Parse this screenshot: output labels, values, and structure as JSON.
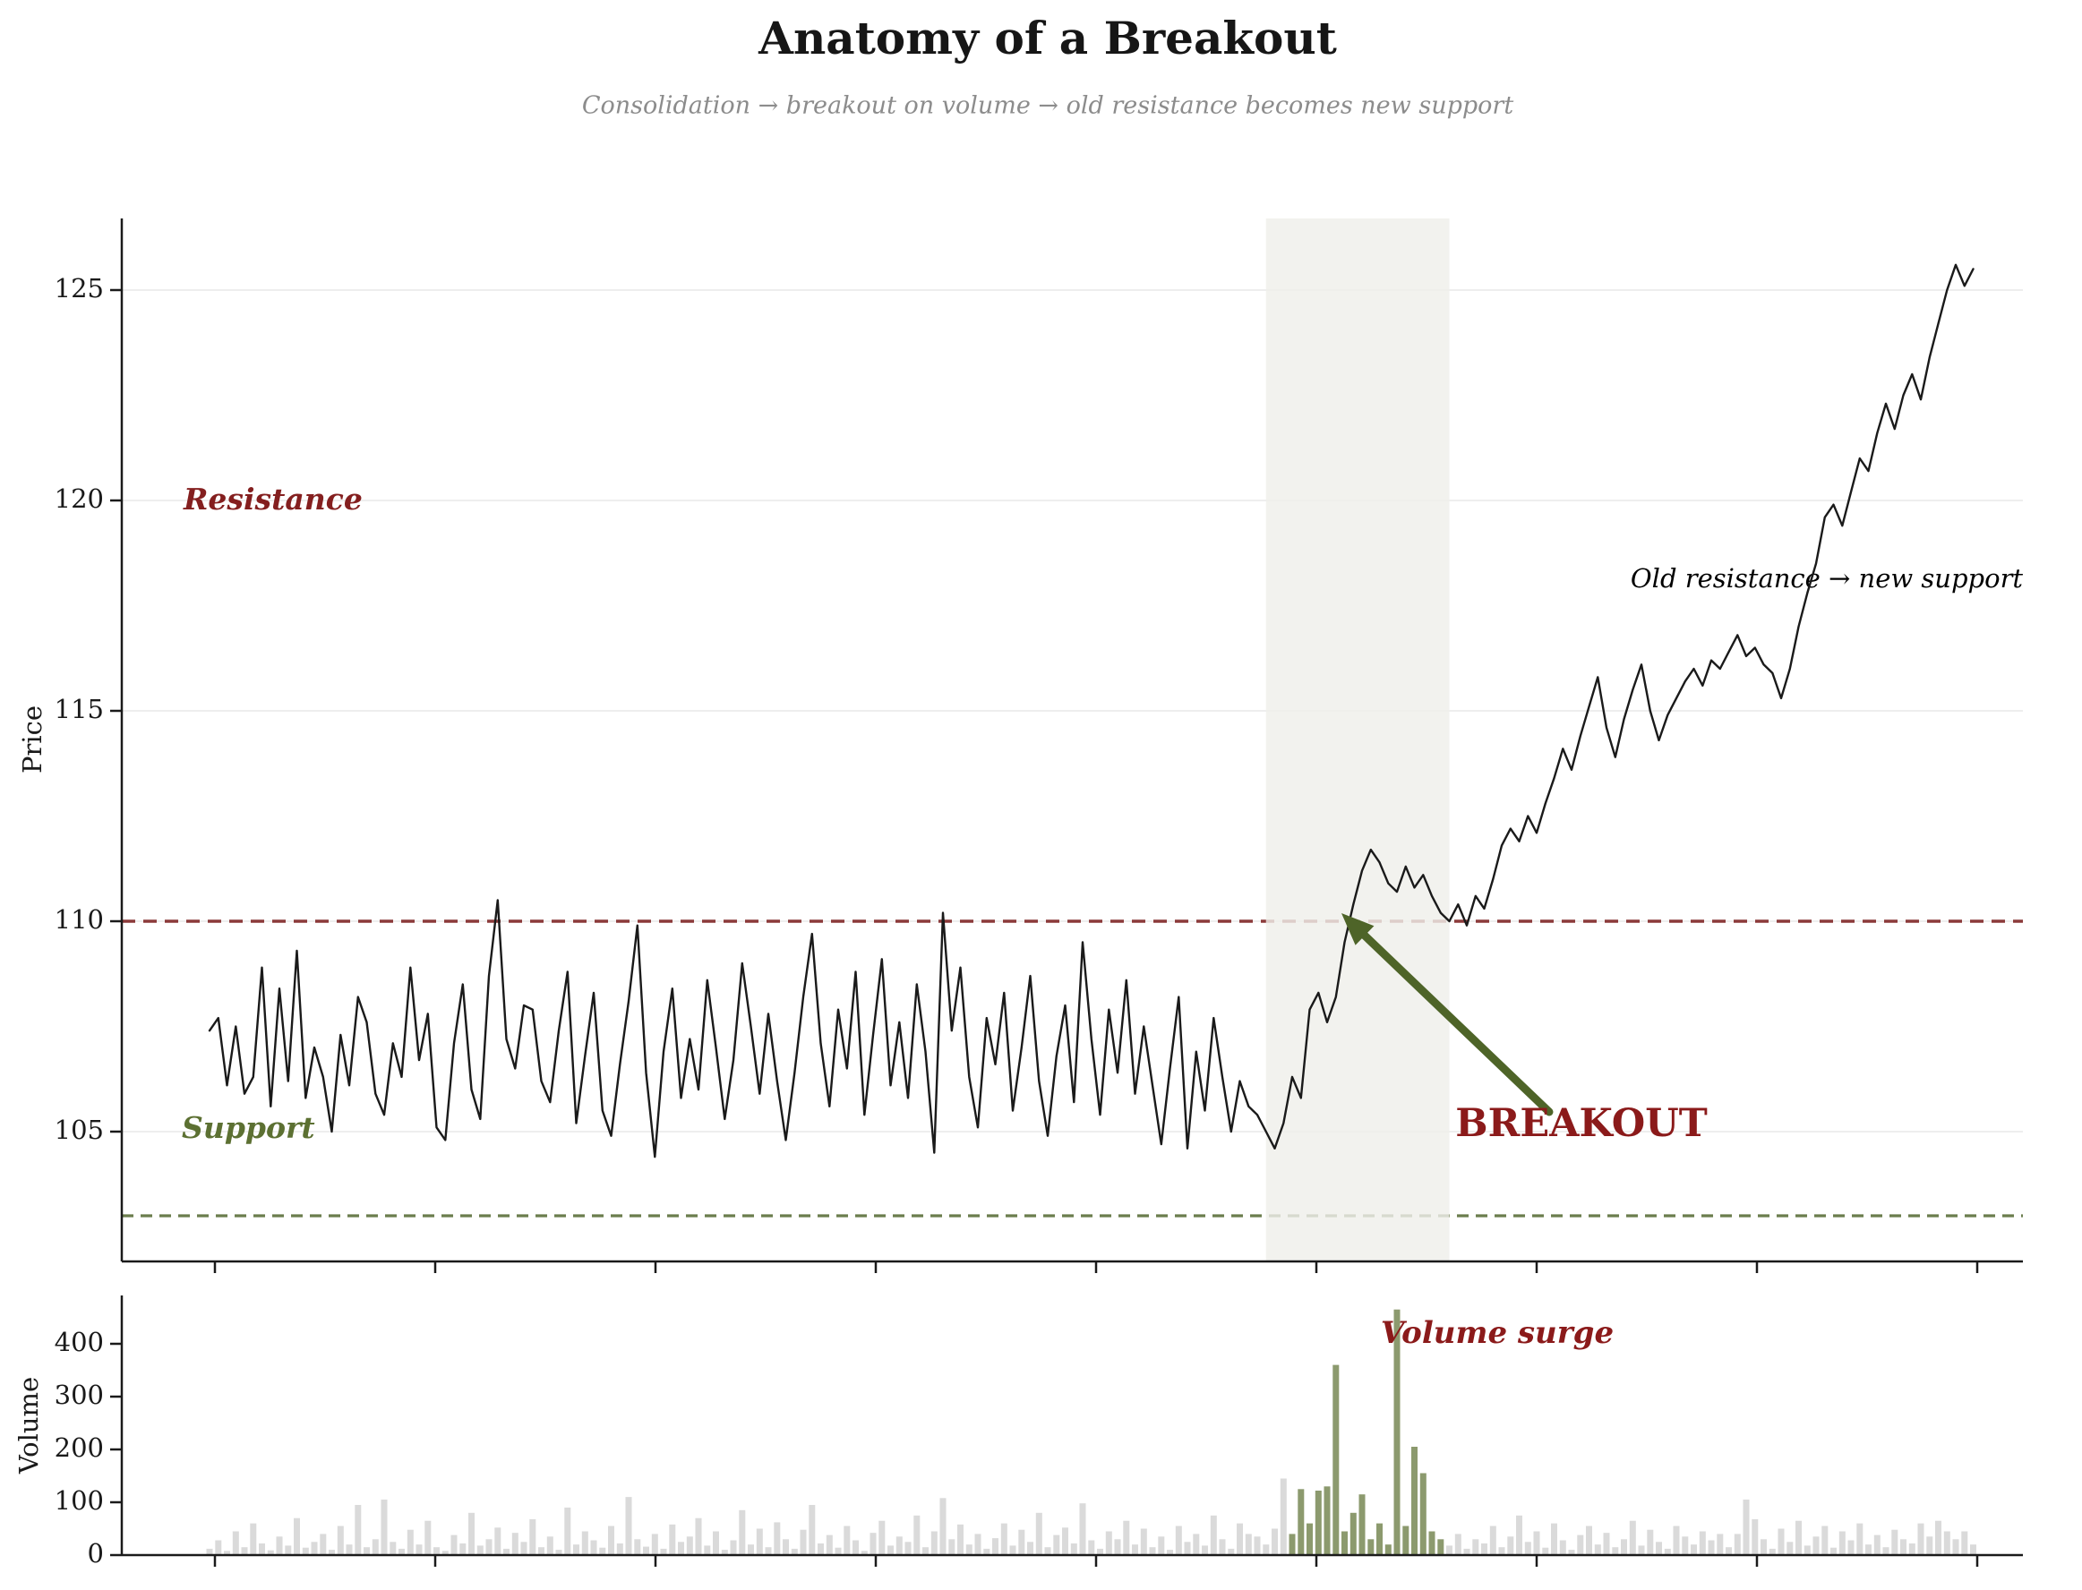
{
  "title": "Anatomy of a Breakout",
  "subtitle": "Consolidation → breakout on volume → old resistance becomes new support",
  "annotations": {
    "resistance": {
      "text": "Resistance",
      "color": "#841f1f"
    },
    "support": {
      "text": "Support",
      "color": "#5c7032"
    },
    "breakout": {
      "text": "BREAKOUT",
      "color": "#8b1a1a"
    },
    "old_resistance": {
      "text": "Old resistance → new support",
      "color": "#9b9b9b"
    },
    "volume_surge": {
      "text": "Volume surge",
      "color": "#8b1a1a"
    }
  },
  "colors": {
    "price_line": "#1a1a1a",
    "resistance_line": "#8b3a3a",
    "support_line": "#6b7d4d",
    "band": "#efefea",
    "grid": "#e9e9e9",
    "volume_bar": "#dadada",
    "volume_surge_bar": "#8c9a6e",
    "arrow": "#4e6428",
    "axis": "#1a1a1a"
  },
  "chart_data": {
    "type": "line+bar",
    "price_panel": {
      "ylabel": "Price",
      "yticks": [
        105,
        110,
        115,
        120,
        125
      ],
      "ylim": [
        101.9,
        126.7
      ],
      "resistance_level": 110,
      "support_level": 103,
      "grid": true
    },
    "volume_panel": {
      "ylabel": "Volume",
      "yticks": [
        0,
        100,
        200,
        300,
        400
      ],
      "ylim": [
        0,
        491
      ],
      "grid": false
    },
    "n_points": 203,
    "band_point_range": [
      121,
      142
    ],
    "surge_point_range": [
      124,
      141
    ],
    "price": [
      107.4,
      107.7,
      106.1,
      107.5,
      105.9,
      106.3,
      108.9,
      105.6,
      108.4,
      106.2,
      109.3,
      105.8,
      107.0,
      106.3,
      105.0,
      107.3,
      106.1,
      108.2,
      107.6,
      105.9,
      105.4,
      107.1,
      106.3,
      108.9,
      106.7,
      107.8,
      105.1,
      104.8,
      107.1,
      108.5,
      106.0,
      105.3,
      108.7,
      110.5,
      107.2,
      106.5,
      108.0,
      107.9,
      106.2,
      105.7,
      107.4,
      108.8,
      105.2,
      106.8,
      108.3,
      105.5,
      104.9,
      106.6,
      108.1,
      109.9,
      106.4,
      104.4,
      106.9,
      108.4,
      105.8,
      107.2,
      106.0,
      108.6,
      107.0,
      105.3,
      106.7,
      109.0,
      107.5,
      105.9,
      107.8,
      106.2,
      104.8,
      106.4,
      108.2,
      109.7,
      107.1,
      105.6,
      107.9,
      106.5,
      108.8,
      105.4,
      107.3,
      109.1,
      106.1,
      107.6,
      105.8,
      108.5,
      106.9,
      104.5,
      110.2,
      107.4,
      108.9,
      106.3,
      105.1,
      107.7,
      106.6,
      108.3,
      105.5,
      107.0,
      108.7,
      106.2,
      104.9,
      106.8,
      108.0,
      105.7,
      109.5,
      107.2,
      105.4,
      107.9,
      106.4,
      108.6,
      105.9,
      107.5,
      106.1,
      104.7,
      106.5,
      108.2,
      104.6,
      106.9,
      105.5,
      107.7,
      106.3,
      105.0,
      106.2,
      105.6,
      105.4,
      105.0,
      104.6,
      105.2,
      106.3,
      105.8,
      107.9,
      108.3,
      107.6,
      108.2,
      109.5,
      110.4,
      111.2,
      111.7,
      111.4,
      110.9,
      110.7,
      111.3,
      110.8,
      111.1,
      110.6,
      110.2,
      110.0,
      110.4,
      109.9,
      110.6,
      110.3,
      111.0,
      111.8,
      112.2,
      111.9,
      112.5,
      112.1,
      112.8,
      113.4,
      114.1,
      113.6,
      114.4,
      115.1,
      115.8,
      114.6,
      113.9,
      114.8,
      115.5,
      116.1,
      115.0,
      114.3,
      114.9,
      115.3,
      115.7,
      116.0,
      115.6,
      116.2,
      116.0,
      116.4,
      116.8,
      116.3,
      116.5,
      116.1,
      115.9,
      115.3,
      116.0,
      117.0,
      117.8,
      118.5,
      119.6,
      119.9,
      119.4,
      120.2,
      121.0,
      120.7,
      121.6,
      122.3,
      121.7,
      122.5,
      123.0,
      122.4,
      123.4,
      124.2,
      125.0,
      125.6,
      125.1,
      125.5
    ],
    "volume": [
      12,
      28,
      8,
      45,
      15,
      60,
      22,
      9,
      35,
      18,
      70,
      14,
      25,
      40,
      10,
      55,
      20,
      95,
      15,
      30,
      105,
      25,
      12,
      48,
      20,
      65,
      15,
      8,
      38,
      22,
      80,
      18,
      30,
      52,
      12,
      42,
      25,
      68,
      15,
      35,
      10,
      90,
      20,
      45,
      28,
      14,
      55,
      22,
      110,
      30,
      16,
      40,
      12,
      58,
      25,
      35,
      70,
      18,
      45,
      10,
      28,
      85,
      20,
      50,
      15,
      62,
      30,
      12,
      48,
      95,
      22,
      38,
      14,
      55,
      28,
      8,
      42,
      65,
      18,
      35,
      25,
      75,
      15,
      45,
      108,
      30,
      58,
      20,
      40,
      12,
      32,
      60,
      18,
      48,
      25,
      80,
      15,
      38,
      52,
      22,
      98,
      28,
      12,
      45,
      30,
      65,
      20,
      50,
      15,
      35,
      10,
      55,
      25,
      40,
      18,
      75,
      30,
      12,
      60,
      40,
      35,
      20,
      50,
      145,
      40,
      125,
      60,
      122,
      130,
      360,
      45,
      80,
      115,
      30,
      60,
      20,
      465,
      55,
      205,
      155,
      45,
      30,
      18,
      40,
      12,
      30,
      22,
      55,
      15,
      35,
      75,
      25,
      45,
      14,
      60,
      28,
      10,
      38,
      55,
      20,
      42,
      15,
      30,
      65,
      18,
      48,
      25,
      12,
      55,
      35,
      20,
      45,
      28,
      40,
      15,
      40,
      105,
      68,
      30,
      12,
      50,
      25,
      65,
      18,
      35,
      55,
      14,
      45,
      28,
      60,
      20,
      38,
      15,
      48,
      30,
      22,
      60,
      35,
      65,
      45,
      30,
      45,
      20
    ]
  }
}
